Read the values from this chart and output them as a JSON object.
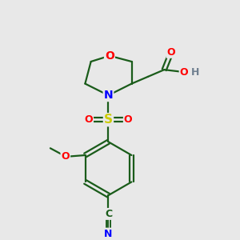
{
  "background_color": "#e8e8e8",
  "atom_colors": {
    "C": "#1a5c1a",
    "N": "#0000ff",
    "O": "#ff0000",
    "S": "#cccc00",
    "H": "#708090"
  },
  "bond_color": "#1a5c1a",
  "line_width": 1.6,
  "figsize": [
    3.0,
    3.0
  ],
  "dpi": 100
}
